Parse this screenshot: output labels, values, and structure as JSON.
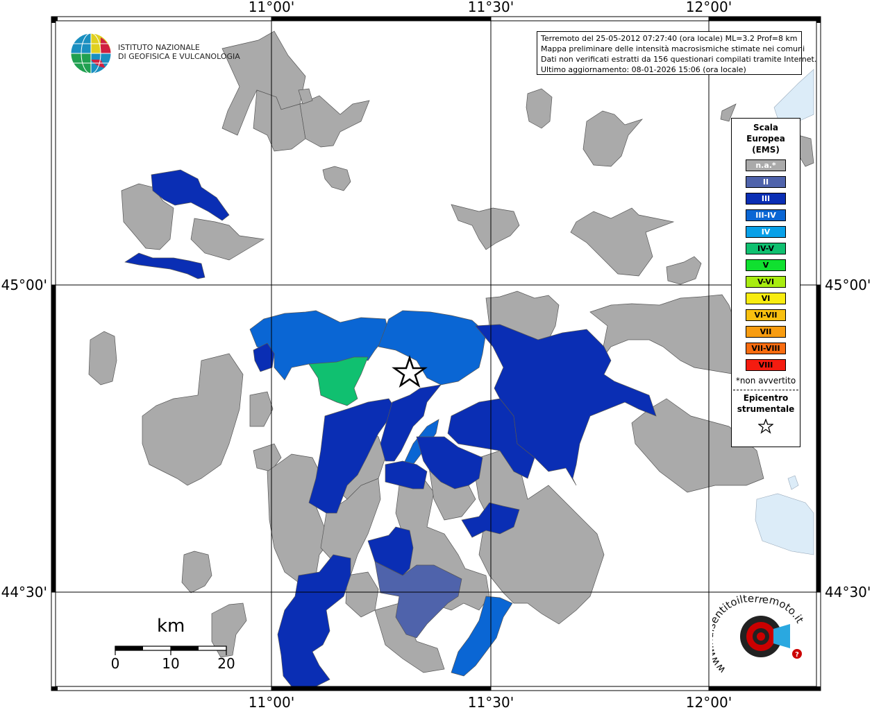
{
  "info": {
    "line1": "Terremoto del 25-05-2012 07:27:40 (ora locale) ML=3.2 Prof=8 km",
    "line2": "Mappa preliminare delle intensità macrosismiche stimate nei comuni",
    "line3": "Dati non verificati estratti da 156 questionari compilati tramite Internet.",
    "line4": "Ultimo aggiornamento: 08-01-2026 15:06 (ora locale)"
  },
  "logo": {
    "line1": "ISTITUTO NAZIONALE",
    "line2": "DI GEOFISICA E VULCANOLOGIA"
  },
  "coords": {
    "top": [
      "11°00'",
      "11°30'",
      "12°00'"
    ],
    "bottom": [
      "11°00'",
      "11°30'",
      "12°00'"
    ],
    "left": [
      "45°00'",
      "44°30'"
    ],
    "right": [
      "45°00'",
      "44°30'"
    ]
  },
  "legend": {
    "title_line1": "Scala",
    "title_line2": "Europea",
    "title_line3": "(EMS)",
    "items": [
      {
        "label": "n.a.*",
        "color": "#aaaaaa",
        "text_color": "#ffffff"
      },
      {
        "label": "II",
        "color": "#4f63ab",
        "text_color": "#ffffff"
      },
      {
        "label": "III",
        "color": "#0a2eb4",
        "text_color": "#ffffff"
      },
      {
        "label": "III-IV",
        "color": "#0a66d4",
        "text_color": "#ffffff"
      },
      {
        "label": "IV",
        "color": "#08a0e8",
        "text_color": "#ffffff"
      },
      {
        "label": "IV-V",
        "color": "#10c070",
        "text_color": "#000000"
      },
      {
        "label": "V",
        "color": "#10e030",
        "text_color": "#000000"
      },
      {
        "label": "V-VI",
        "color": "#a8ec10",
        "text_color": "#000000"
      },
      {
        "label": "VI",
        "color": "#f8ec10",
        "text_color": "#000000"
      },
      {
        "label": "VI-VII",
        "color": "#f8c010",
        "text_color": "#000000"
      },
      {
        "label": "VII",
        "color": "#f89c10",
        "text_color": "#000000"
      },
      {
        "label": "VII-VIII",
        "color": "#f86c10",
        "text_color": "#000000"
      },
      {
        "label": "VIII",
        "color": "#f41c10",
        "text_color": "#000000"
      }
    ],
    "note": "*non avvertito",
    "epicentre_line1": "Epicentro",
    "epicentre_line2": "strumentale"
  },
  "scale": {
    "title": "km",
    "ticks": [
      "0",
      "10",
      "20"
    ]
  },
  "watermark": {
    "text": "www.haisentitoilterremoto.it",
    "badge": "?"
  },
  "colors": {
    "na": "#aaaaaa",
    "II": "#4f63ab",
    "III": "#0a2eb4",
    "III_IV": "#0a66d4",
    "IV_V": "#10c070",
    "sea": "#dcecf8"
  }
}
